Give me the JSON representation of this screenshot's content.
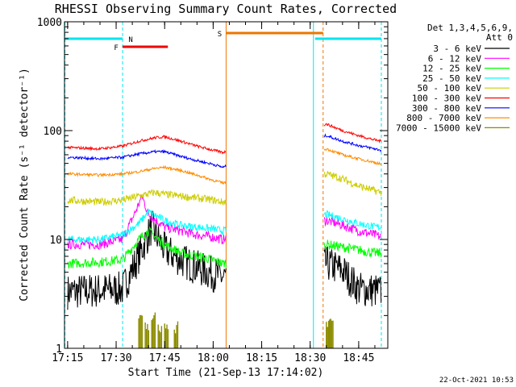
{
  "chart_data": {
    "type": "line",
    "title": "RHESSI Observing Summary Count Rates, Corrected",
    "xlabel": "Start Time (21-Sep-13 17:14:02)",
    "ylabel": "Corrected Count Rate (s⁻¹ detector⁻¹)",
    "x_ticks": [
      "17:15",
      "17:30",
      "17:45",
      "18:00",
      "18:15",
      "18:30",
      "18:45"
    ],
    "y_ticks": [
      "1",
      "10",
      "100",
      "1000"
    ],
    "y_scale": "log",
    "ylim": [
      1,
      1000
    ],
    "xlim": [
      "17:14:02",
      "18:54:00"
    ],
    "grid": false,
    "legend_position": "right",
    "legend_header": [
      "Det 1,3,4,5,6,9,",
      "Att 0"
    ],
    "timestamp": "22-Oct-2021 10:53",
    "flags": [
      {
        "label": "N",
        "color": "#00e5ee"
      },
      {
        "label": "F",
        "color": "#ee0000"
      },
      {
        "label": "S",
        "color": "#ee7600"
      }
    ],
    "series": [
      {
        "name": "3 - 6 keV",
        "color": "#000000",
        "x": [
          "17:15",
          "17:25",
          "17:32",
          "17:37",
          "17:41",
          "17:45",
          "17:50",
          "17:55",
          "18:00",
          "18:03",
          "18:35",
          "18:40",
          "18:45",
          "18:50",
          "18:52"
        ],
        "values": [
          3.3,
          3.4,
          3.5,
          7,
          13,
          8,
          6.5,
          5.5,
          4.8,
          4.5,
          6,
          5.2,
          3.5,
          3.4,
          3.3
        ]
      },
      {
        "name": "6 - 12 keV",
        "color": "#ff00ff",
        "x": [
          "17:15",
          "17:25",
          "17:32",
          "17:36",
          "17:38",
          "17:40",
          "17:45",
          "17:50",
          "17:55",
          "18:00",
          "18:03",
          "18:35",
          "18:40",
          "18:45",
          "18:50",
          "18:52"
        ],
        "values": [
          9,
          9,
          10,
          18,
          25,
          17,
          13,
          12,
          11,
          10.5,
          10,
          15,
          13.5,
          12,
          11,
          10.5
        ]
      },
      {
        "name": "12 - 25 keV",
        "color": "#00ff00",
        "x": [
          "17:15",
          "17:25",
          "17:32",
          "17:37",
          "17:40",
          "17:45",
          "17:50",
          "17:55",
          "18:00",
          "18:03",
          "18:35",
          "18:40",
          "18:45",
          "18:50",
          "18:52"
        ],
        "values": [
          6,
          6.2,
          6.5,
          10,
          12,
          9,
          7.5,
          7,
          6.5,
          6,
          9,
          8.5,
          8,
          7.5,
          7.5
        ]
      },
      {
        "name": "25 - 50 keV",
        "color": "#00ffff",
        "x": [
          "17:15",
          "17:25",
          "17:32",
          "17:37",
          "17:40",
          "17:45",
          "17:50",
          "17:55",
          "18:00",
          "18:03",
          "18:35",
          "18:40",
          "18:45",
          "18:50",
          "18:52"
        ],
        "values": [
          10,
          10,
          11,
          14,
          18,
          15,
          13.5,
          13,
          12.5,
          12,
          17,
          15.5,
          14,
          13,
          13
        ]
      },
      {
        "name": "50 - 100 keV",
        "color": "#cdcd00",
        "x": [
          "17:15",
          "17:25",
          "17:32",
          "17:37",
          "17:42",
          "17:45",
          "17:50",
          "17:55",
          "18:00",
          "18:03",
          "18:35",
          "18:40",
          "18:45",
          "18:50",
          "18:52"
        ],
        "values": [
          23,
          22,
          23,
          25,
          27,
          26,
          25,
          24,
          23,
          22,
          40,
          36,
          31,
          28,
          27
        ]
      },
      {
        "name": "100 - 300 keV",
        "color": "#ff0000",
        "x": [
          "17:15",
          "17:25",
          "17:32",
          "17:37",
          "17:42",
          "17:45",
          "17:50",
          "17:55",
          "18:00",
          "18:03",
          "18:35",
          "18:40",
          "18:45",
          "18:50",
          "18:52"
        ],
        "values": [
          70,
          68,
          72,
          80,
          86,
          88,
          80,
          72,
          66,
          63,
          115,
          100,
          90,
          82,
          80
        ]
      },
      {
        "name": "300 - 800 keV",
        "color": "#0000ff",
        "x": [
          "17:15",
          "17:25",
          "17:32",
          "17:37",
          "17:42",
          "17:45",
          "17:50",
          "17:55",
          "18:00",
          "18:03",
          "18:35",
          "18:40",
          "18:45",
          "18:50",
          "18:52"
        ],
        "values": [
          57,
          55,
          57,
          61,
          64,
          64,
          58,
          53,
          49,
          46,
          90,
          80,
          73,
          68,
          66
        ]
      },
      {
        "name": "800 - 7000 keV",
        "color": "#ff8c00",
        "x": [
          "17:15",
          "17:25",
          "17:32",
          "17:37",
          "17:42",
          "17:45",
          "17:50",
          "17:55",
          "18:00",
          "18:03",
          "18:35",
          "18:40",
          "18:45",
          "18:50",
          "18:52"
        ],
        "values": [
          40,
          39,
          40,
          42,
          45,
          46,
          43,
          39,
          35,
          33,
          68,
          60,
          55,
          51,
          49
        ]
      },
      {
        "name": "7000 - 15000 keV",
        "color": "#8b8b00",
        "x": [
          "17:37",
          "17:39",
          "17:41",
          "17:43",
          "17:45",
          "17:48",
          "18:35",
          "18:36"
        ],
        "values": [
          1.8,
          1.6,
          1.9,
          1.5,
          1.7,
          1.6,
          1.8,
          1.7
        ]
      }
    ]
  }
}
